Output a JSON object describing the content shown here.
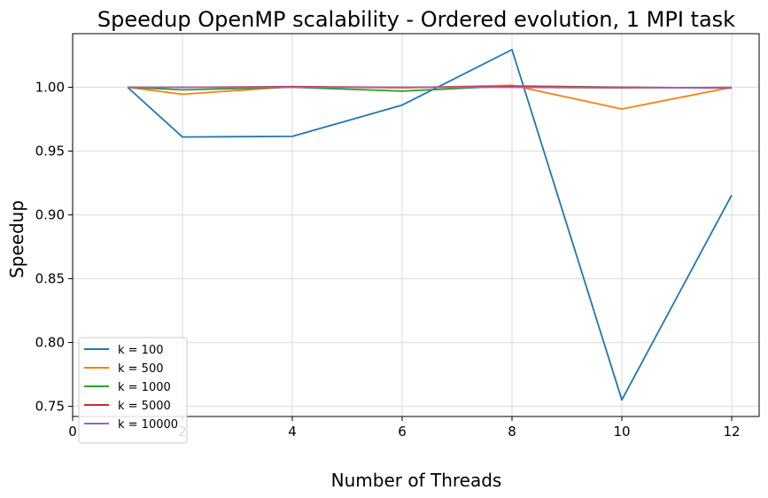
{
  "chart_data": {
    "type": "line",
    "title": "Speedup OpenMP scalability - Ordered evolution, 1 MPI task",
    "xlabel": "Number of Threads",
    "ylabel": "Speedup",
    "xlim": [
      0,
      12.5
    ],
    "ylim": [
      0.742,
      1.042
    ],
    "xticks": [
      0,
      2,
      4,
      6,
      8,
      10,
      12
    ],
    "xtick_labels": [
      "0",
      "2",
      "4",
      "6",
      "8",
      "10",
      "12"
    ],
    "yticks": [
      0.75,
      0.8,
      0.85,
      0.9,
      0.95,
      1.0
    ],
    "ytick_labels": [
      "0.75",
      "0.80",
      "0.85",
      "0.90",
      "0.95",
      "1.00"
    ],
    "grid": true,
    "legend_position": "lower-left",
    "x": [
      1,
      2,
      4,
      6,
      8,
      10,
      12
    ],
    "series": [
      {
        "name": "k = 100",
        "color": "#1f77b4",
        "values": [
          1.0,
          0.961,
          0.9615,
          0.986,
          1.0295,
          0.755,
          0.9155
        ]
      },
      {
        "name": "k = 500",
        "color": "#ff7f0e",
        "values": [
          1.0,
          0.9945,
          1.0005,
          0.9995,
          1.0015,
          0.983,
          1.0
        ]
      },
      {
        "name": "k = 1000",
        "color": "#2ca02c",
        "values": [
          1.0,
          0.998,
          1.0,
          0.997,
          1.001,
          1.0,
          0.9995
        ]
      },
      {
        "name": "k = 5000",
        "color": "#d62728",
        "values": [
          1.0,
          1.0,
          1.0005,
          1.0,
          1.0005,
          1.0,
          0.9995
        ]
      },
      {
        "name": "k = 10000",
        "color": "#9467bd",
        "values": [
          1.0,
          1.0,
          1.0,
          1.0,
          1.0,
          0.9995,
          1.0
        ]
      }
    ]
  }
}
